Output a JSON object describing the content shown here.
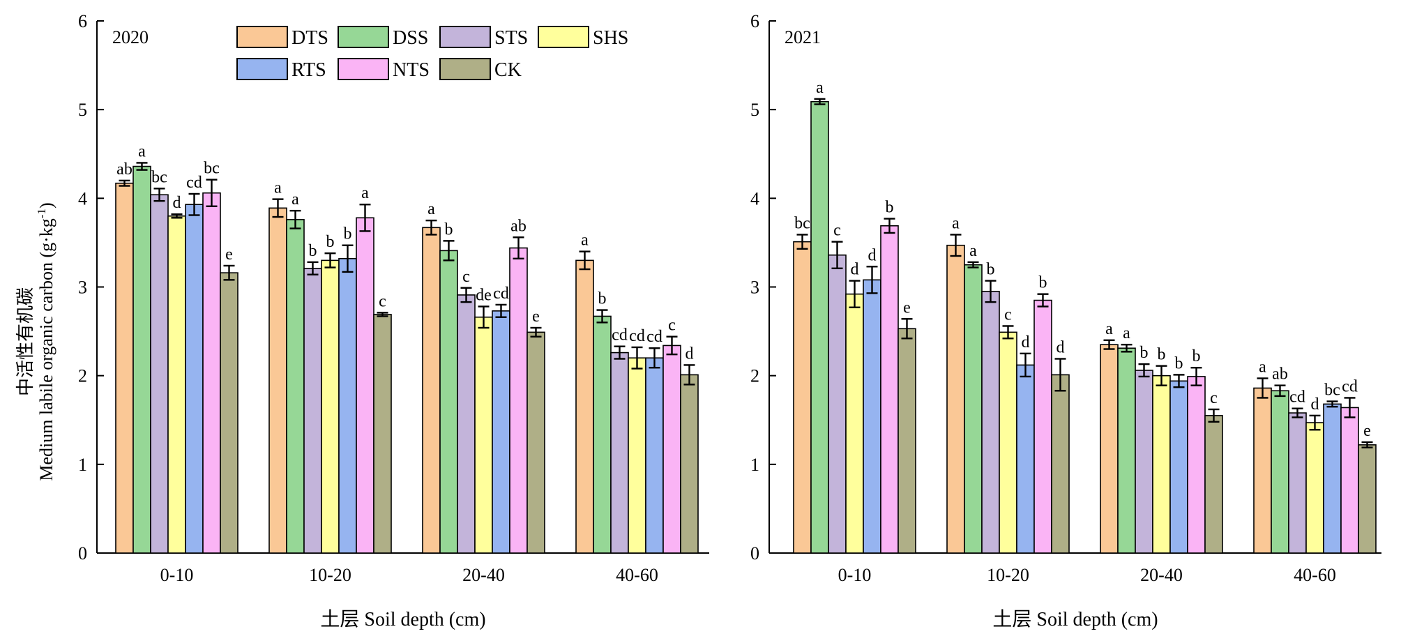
{
  "colors": {
    "DTS": "#FAC896",
    "DSS": "#96D796",
    "STS": "#C3B4DA",
    "SHS": "#FFFF9C",
    "RTS": "#96B4F0",
    "NTS": "#FAB4F5",
    "CK": "#AFAF87"
  },
  "chart_data": [
    {
      "type": "bar",
      "panel_label": "2020",
      "categories": [
        "0-10",
        "10-20",
        "20-40",
        "40-60"
      ],
      "xlabel": "土层 Soil depth (cm)",
      "ylabel_cn": "中活性有机碳",
      "ylabel_en": "Medium labile organic carbon (g·kg",
      "ylabel_sup": "-1",
      "ylabel_close": ")",
      "ylim": [
        0,
        6
      ],
      "yticks": [
        "0",
        "1",
        "2",
        "3",
        "4",
        "5",
        "6"
      ],
      "legend": {
        "position": "top-center",
        "entries": [
          "DTS",
          "DSS",
          "STS",
          "SHS",
          "RTS",
          "NTS",
          "CK"
        ]
      },
      "series": [
        {
          "name": "DTS",
          "values": [
            4.17,
            3.89,
            3.67,
            3.3
          ],
          "errors": [
            0.03,
            0.1,
            0.08,
            0.1
          ],
          "letters": [
            "ab",
            "a",
            "a",
            "a"
          ]
        },
        {
          "name": "DSS",
          "values": [
            4.36,
            3.76,
            3.41,
            2.67
          ],
          "errors": [
            0.04,
            0.1,
            0.11,
            0.07
          ],
          "letters": [
            "a",
            "a",
            "b",
            "b"
          ]
        },
        {
          "name": "STS",
          "values": [
            4.04,
            3.21,
            2.91,
            2.26
          ],
          "errors": [
            0.07,
            0.07,
            0.08,
            0.07
          ],
          "letters": [
            "bc",
            "b",
            "c",
            "cd"
          ]
        },
        {
          "name": "SHS",
          "values": [
            3.8,
            3.3,
            2.66,
            2.2
          ],
          "errors": [
            0.02,
            0.08,
            0.12,
            0.12
          ],
          "letters": [
            "d",
            "b",
            "de",
            "cd"
          ]
        },
        {
          "name": "RTS",
          "values": [
            3.93,
            3.32,
            2.73,
            2.2
          ],
          "errors": [
            0.12,
            0.15,
            0.07,
            0.11
          ],
          "letters": [
            "cd",
            "b",
            "cd",
            "cd"
          ]
        },
        {
          "name": "NTS",
          "values": [
            4.06,
            3.78,
            3.44,
            2.34
          ],
          "errors": [
            0.15,
            0.15,
            0.12,
            0.1
          ],
          "letters": [
            "bc",
            "a",
            "ab",
            "c"
          ]
        },
        {
          "name": "CK",
          "values": [
            3.16,
            2.69,
            2.49,
            2.01
          ],
          "errors": [
            0.08,
            0.02,
            0.05,
            0.11
          ],
          "letters": [
            "e",
            "c",
            "e",
            "d"
          ]
        }
      ]
    },
    {
      "type": "bar",
      "panel_label": "2021",
      "categories": [
        "0-10",
        "10-20",
        "20-40",
        "40-60"
      ],
      "xlabel": "土层 Soil depth (cm)",
      "ylim": [
        0,
        6
      ],
      "yticks": [
        "0",
        "1",
        "2",
        "3",
        "4",
        "5",
        "6"
      ],
      "series": [
        {
          "name": "DTS",
          "values": [
            3.51,
            3.47,
            2.35,
            1.86
          ],
          "errors": [
            0.08,
            0.12,
            0.05,
            0.11
          ],
          "letters": [
            "bc",
            "a",
            "a",
            "a"
          ]
        },
        {
          "name": "DSS",
          "values": [
            5.09,
            3.25,
            2.31,
            1.83
          ],
          "errors": [
            0.03,
            0.03,
            0.04,
            0.06
          ],
          "letters": [
            "a",
            "a",
            "a",
            "ab"
          ]
        },
        {
          "name": "STS",
          "values": [
            3.36,
            2.95,
            2.06,
            1.58
          ],
          "errors": [
            0.15,
            0.12,
            0.07,
            0.05
          ],
          "letters": [
            "c",
            "b",
            "b",
            "cd"
          ]
        },
        {
          "name": "SHS",
          "values": [
            2.92,
            2.49,
            2.0,
            1.47
          ],
          "errors": [
            0.15,
            0.07,
            0.11,
            0.08
          ],
          "letters": [
            "d",
            "c",
            "b",
            "d"
          ]
        },
        {
          "name": "RTS",
          "values": [
            3.08,
            2.12,
            1.94,
            1.68
          ],
          "errors": [
            0.15,
            0.13,
            0.07,
            0.03
          ],
          "letters": [
            "d",
            "d",
            "b",
            "bc"
          ]
        },
        {
          "name": "NTS",
          "values": [
            3.69,
            2.85,
            1.99,
            1.64
          ],
          "errors": [
            0.08,
            0.07,
            0.1,
            0.11
          ],
          "letters": [
            "b",
            "b",
            "b",
            "cd"
          ]
        },
        {
          "name": "CK",
          "values": [
            2.53,
            2.01,
            1.55,
            1.22
          ],
          "errors": [
            0.11,
            0.18,
            0.07,
            0.03
          ],
          "letters": [
            "e",
            "d",
            "c",
            "e"
          ]
        }
      ]
    }
  ]
}
